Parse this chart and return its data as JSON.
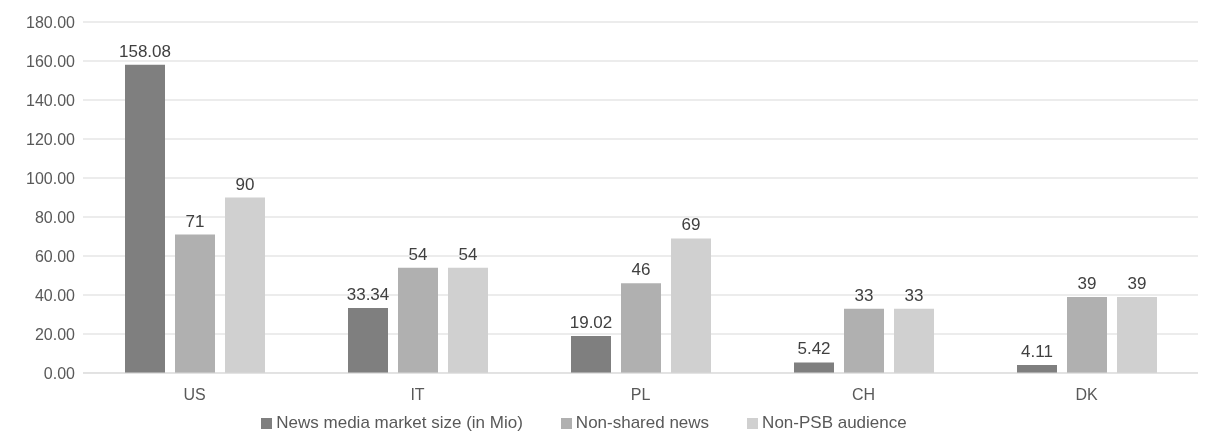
{
  "chart_data": {
    "type": "bar",
    "categories": [
      "US",
      "IT",
      "PL",
      "CH",
      "DK"
    ],
    "series": [
      {
        "name": "News media market size (in Mio)",
        "color": "#7f7f7f",
        "values": [
          158.08,
          33.34,
          19.02,
          5.42,
          4.11
        ]
      },
      {
        "name": "Non-shared news",
        "color": "#b0b0b0",
        "values": [
          71,
          54,
          46,
          33,
          39
        ]
      },
      {
        "name": "Non-PSB audience",
        "color": "#d0d0d0",
        "values": [
          90,
          54,
          69,
          33,
          39
        ]
      }
    ],
    "ylim": [
      0,
      180
    ],
    "yticks": [
      {
        "value": 0,
        "label": "0.00"
      },
      {
        "value": 20,
        "label": "20.00"
      },
      {
        "value": 40,
        "label": "40.00"
      },
      {
        "value": 60,
        "label": "60.00"
      },
      {
        "value": 80,
        "label": "80.00"
      },
      {
        "value": 100,
        "label": "100.00"
      },
      {
        "value": 120,
        "label": "120.00"
      },
      {
        "value": 140,
        "label": "140.00"
      },
      {
        "value": 160,
        "label": "160.00"
      },
      {
        "value": 180,
        "label": "180.00"
      }
    ],
    "grid": "y",
    "legend": "bottom",
    "data_labels": true
  }
}
